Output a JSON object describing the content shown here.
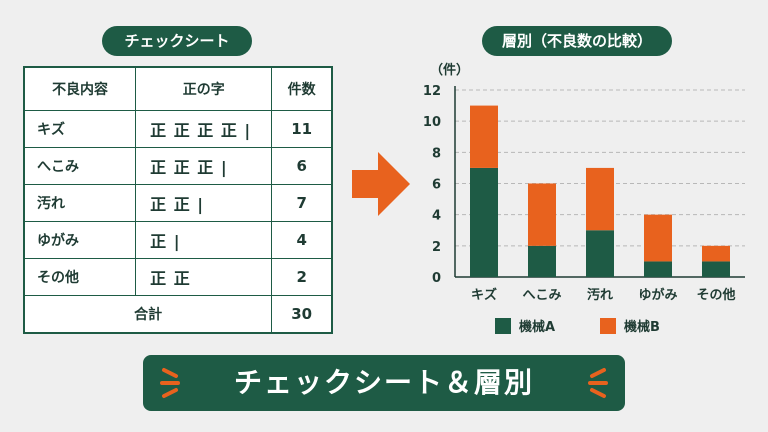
{
  "left": {
    "title": "チェックシート",
    "headers": [
      "不良内容",
      "正の字",
      "件数"
    ],
    "rows": [
      {
        "item": "キズ",
        "tally": "正 正 正 正 |",
        "count": "11"
      },
      {
        "item": "へこみ",
        "tally": "正 正 正 |",
        "count": "6"
      },
      {
        "item": "汚れ",
        "tally": "正 正 |",
        "count": "7"
      },
      {
        "item": "ゆがみ",
        "tally": "正 |",
        "count": "4"
      },
      {
        "item": "その他",
        "tally": "正 正",
        "count": "2"
      }
    ],
    "total_label": "合計",
    "total_value": "30"
  },
  "right": {
    "title": "層別（不良数の比較）"
  },
  "banner": {
    "text": "チェックシート＆層別"
  },
  "colors": {
    "green": "#1e5b45",
    "orange": "#e8621e"
  },
  "chart_data": {
    "type": "bar",
    "stacked": true,
    "y_unit_label": "（件）",
    "categories": [
      "キズ",
      "へこみ",
      "汚れ",
      "ゆがみ",
      "その他"
    ],
    "series": [
      {
        "name": "機械A",
        "values": [
          7,
          2,
          3,
          1,
          1
        ],
        "color": "#1e5b45"
      },
      {
        "name": "機械B",
        "values": [
          4,
          4,
          4,
          3,
          1
        ],
        "color": "#e8621e"
      }
    ],
    "ylim": [
      0,
      12
    ],
    "yticks": [
      0,
      2,
      4,
      6,
      8,
      10,
      12
    ],
    "grid": true,
    "legend": "bottom"
  }
}
